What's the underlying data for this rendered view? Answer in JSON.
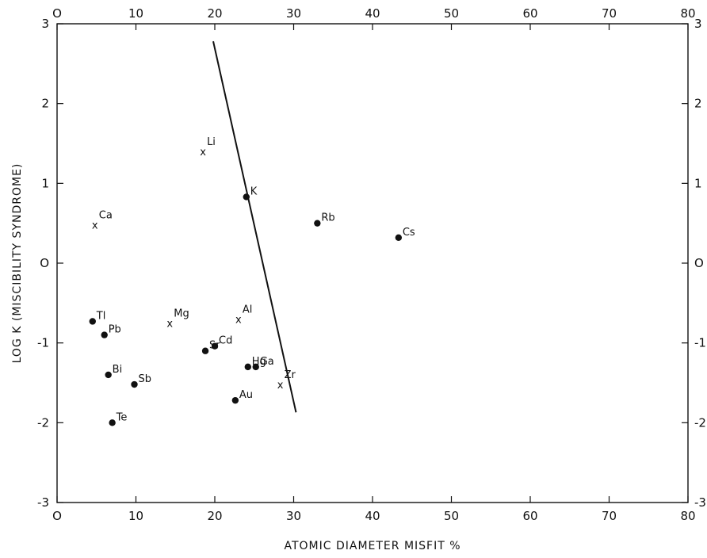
{
  "chart_data": {
    "type": "scatter",
    "xlabel": "ATOMIC   DIAMETER  MISFIT  %",
    "ylabel": "LOG  K   (MISCIBILITY  SYNDROME)",
    "xlim": [
      0,
      80
    ],
    "ylim": [
      -3,
      3
    ],
    "x_ticks": [
      0,
      10,
      20,
      30,
      40,
      50,
      60,
      70,
      80
    ],
    "x_tick_labels": [
      "O",
      "10",
      "20",
      "30",
      "40",
      "50",
      "60",
      "70",
      "80"
    ],
    "y_ticks": [
      -3,
      -2,
      -1,
      0,
      1,
      2,
      3
    ],
    "y_tick_labels": [
      "-3",
      "-2",
      "-1",
      "O",
      "1",
      "2",
      "3"
    ],
    "grid": false,
    "series": [
      {
        "marker": "dot",
        "points": [
          {
            "label": "Tl",
            "x": 4.5,
            "y": -0.73
          },
          {
            "label": "Pb",
            "x": 6.0,
            "y": -0.9
          },
          {
            "label": "Bi",
            "x": 6.5,
            "y": -1.4
          },
          {
            "label": "Sb",
            "x": 9.8,
            "y": -1.52
          },
          {
            "label": "Te",
            "x": 7.0,
            "y": -2.0
          },
          {
            "label": "Sr",
            "x": 18.8,
            "y": -1.1
          },
          {
            "label": "Cd",
            "x": 20.0,
            "y": -1.04
          },
          {
            "label": "Hg",
            "x": 24.2,
            "y": -1.3
          },
          {
            "label": "Ga",
            "x": 25.2,
            "y": -1.3
          },
          {
            "label": "Au",
            "x": 22.6,
            "y": -1.72
          },
          {
            "label": "K",
            "x": 24.0,
            "y": 0.83
          },
          {
            "label": "Rb",
            "x": 33.0,
            "y": 0.5
          },
          {
            "label": "Cs",
            "x": 43.3,
            "y": 0.32
          }
        ]
      },
      {
        "marker": "x",
        "points": [
          {
            "label": "Li",
            "x": 18.5,
            "y": 1.4
          },
          {
            "label": "Ca",
            "x": 4.8,
            "y": 0.48
          },
          {
            "label": "Mg",
            "x": 14.3,
            "y": -0.75
          },
          {
            "label": "Al",
            "x": 23.0,
            "y": -0.7
          },
          {
            "label": "Zr",
            "x": 28.3,
            "y": -1.52
          }
        ]
      }
    ],
    "boundary_line": [
      {
        "x": 19.8,
        "y": 2.78
      },
      {
        "x": 30.3,
        "y": -1.87
      }
    ]
  }
}
